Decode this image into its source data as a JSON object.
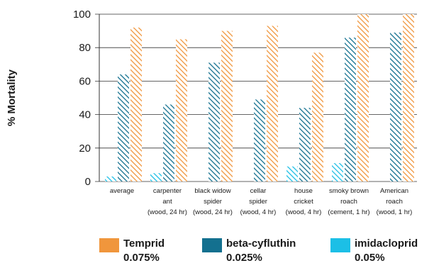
{
  "colors": {
    "Temprid": "#f0963c",
    "beta-cyfluthin": "#13708f",
    "imidacloprid": "#1cbfe6",
    "axis": "#333333",
    "grid": "#333333"
  },
  "chart_data": {
    "type": "bar",
    "ylabel": "% Mortality",
    "ylim": [
      0,
      100
    ],
    "yticks": [
      0,
      20,
      40,
      60,
      80,
      100
    ],
    "grid": true,
    "legend_position": "bottom",
    "categories": [
      [
        "average"
      ],
      [
        "carpenter",
        "ant",
        "(wood, 24 hr)"
      ],
      [
        "black widow",
        "spider",
        "(wood, 24 hr)"
      ],
      [
        "cellar",
        "spider",
        "(wood, 4 hr)"
      ],
      [
        "house",
        "cricket",
        "(wood, 4 hr)"
      ],
      [
        "smoky brown",
        "roach",
        "(cement, 1 hr)"
      ],
      [
        "American",
        "roach",
        "(wood, 1 hr)"
      ]
    ],
    "series": [
      {
        "key": "imidacloprid",
        "values": [
          3,
          5,
          0,
          0,
          9,
          11,
          0
        ]
      },
      {
        "key": "beta-cyfluthin",
        "values": [
          64,
          46,
          71,
          49,
          44,
          86,
          89
        ]
      },
      {
        "key": "Temprid",
        "values": [
          92,
          85,
          90,
          93,
          77,
          100,
          100
        ]
      }
    ]
  },
  "legend": [
    {
      "key": "Temprid",
      "line1": "Temprid",
      "line2": "0.075%"
    },
    {
      "key": "beta-cyfluthin",
      "line1": "beta-cyfluthin",
      "line2": "0.025%"
    },
    {
      "key": "imidacloprid",
      "line1": "imidacloprid",
      "line2": "0.05%"
    }
  ]
}
